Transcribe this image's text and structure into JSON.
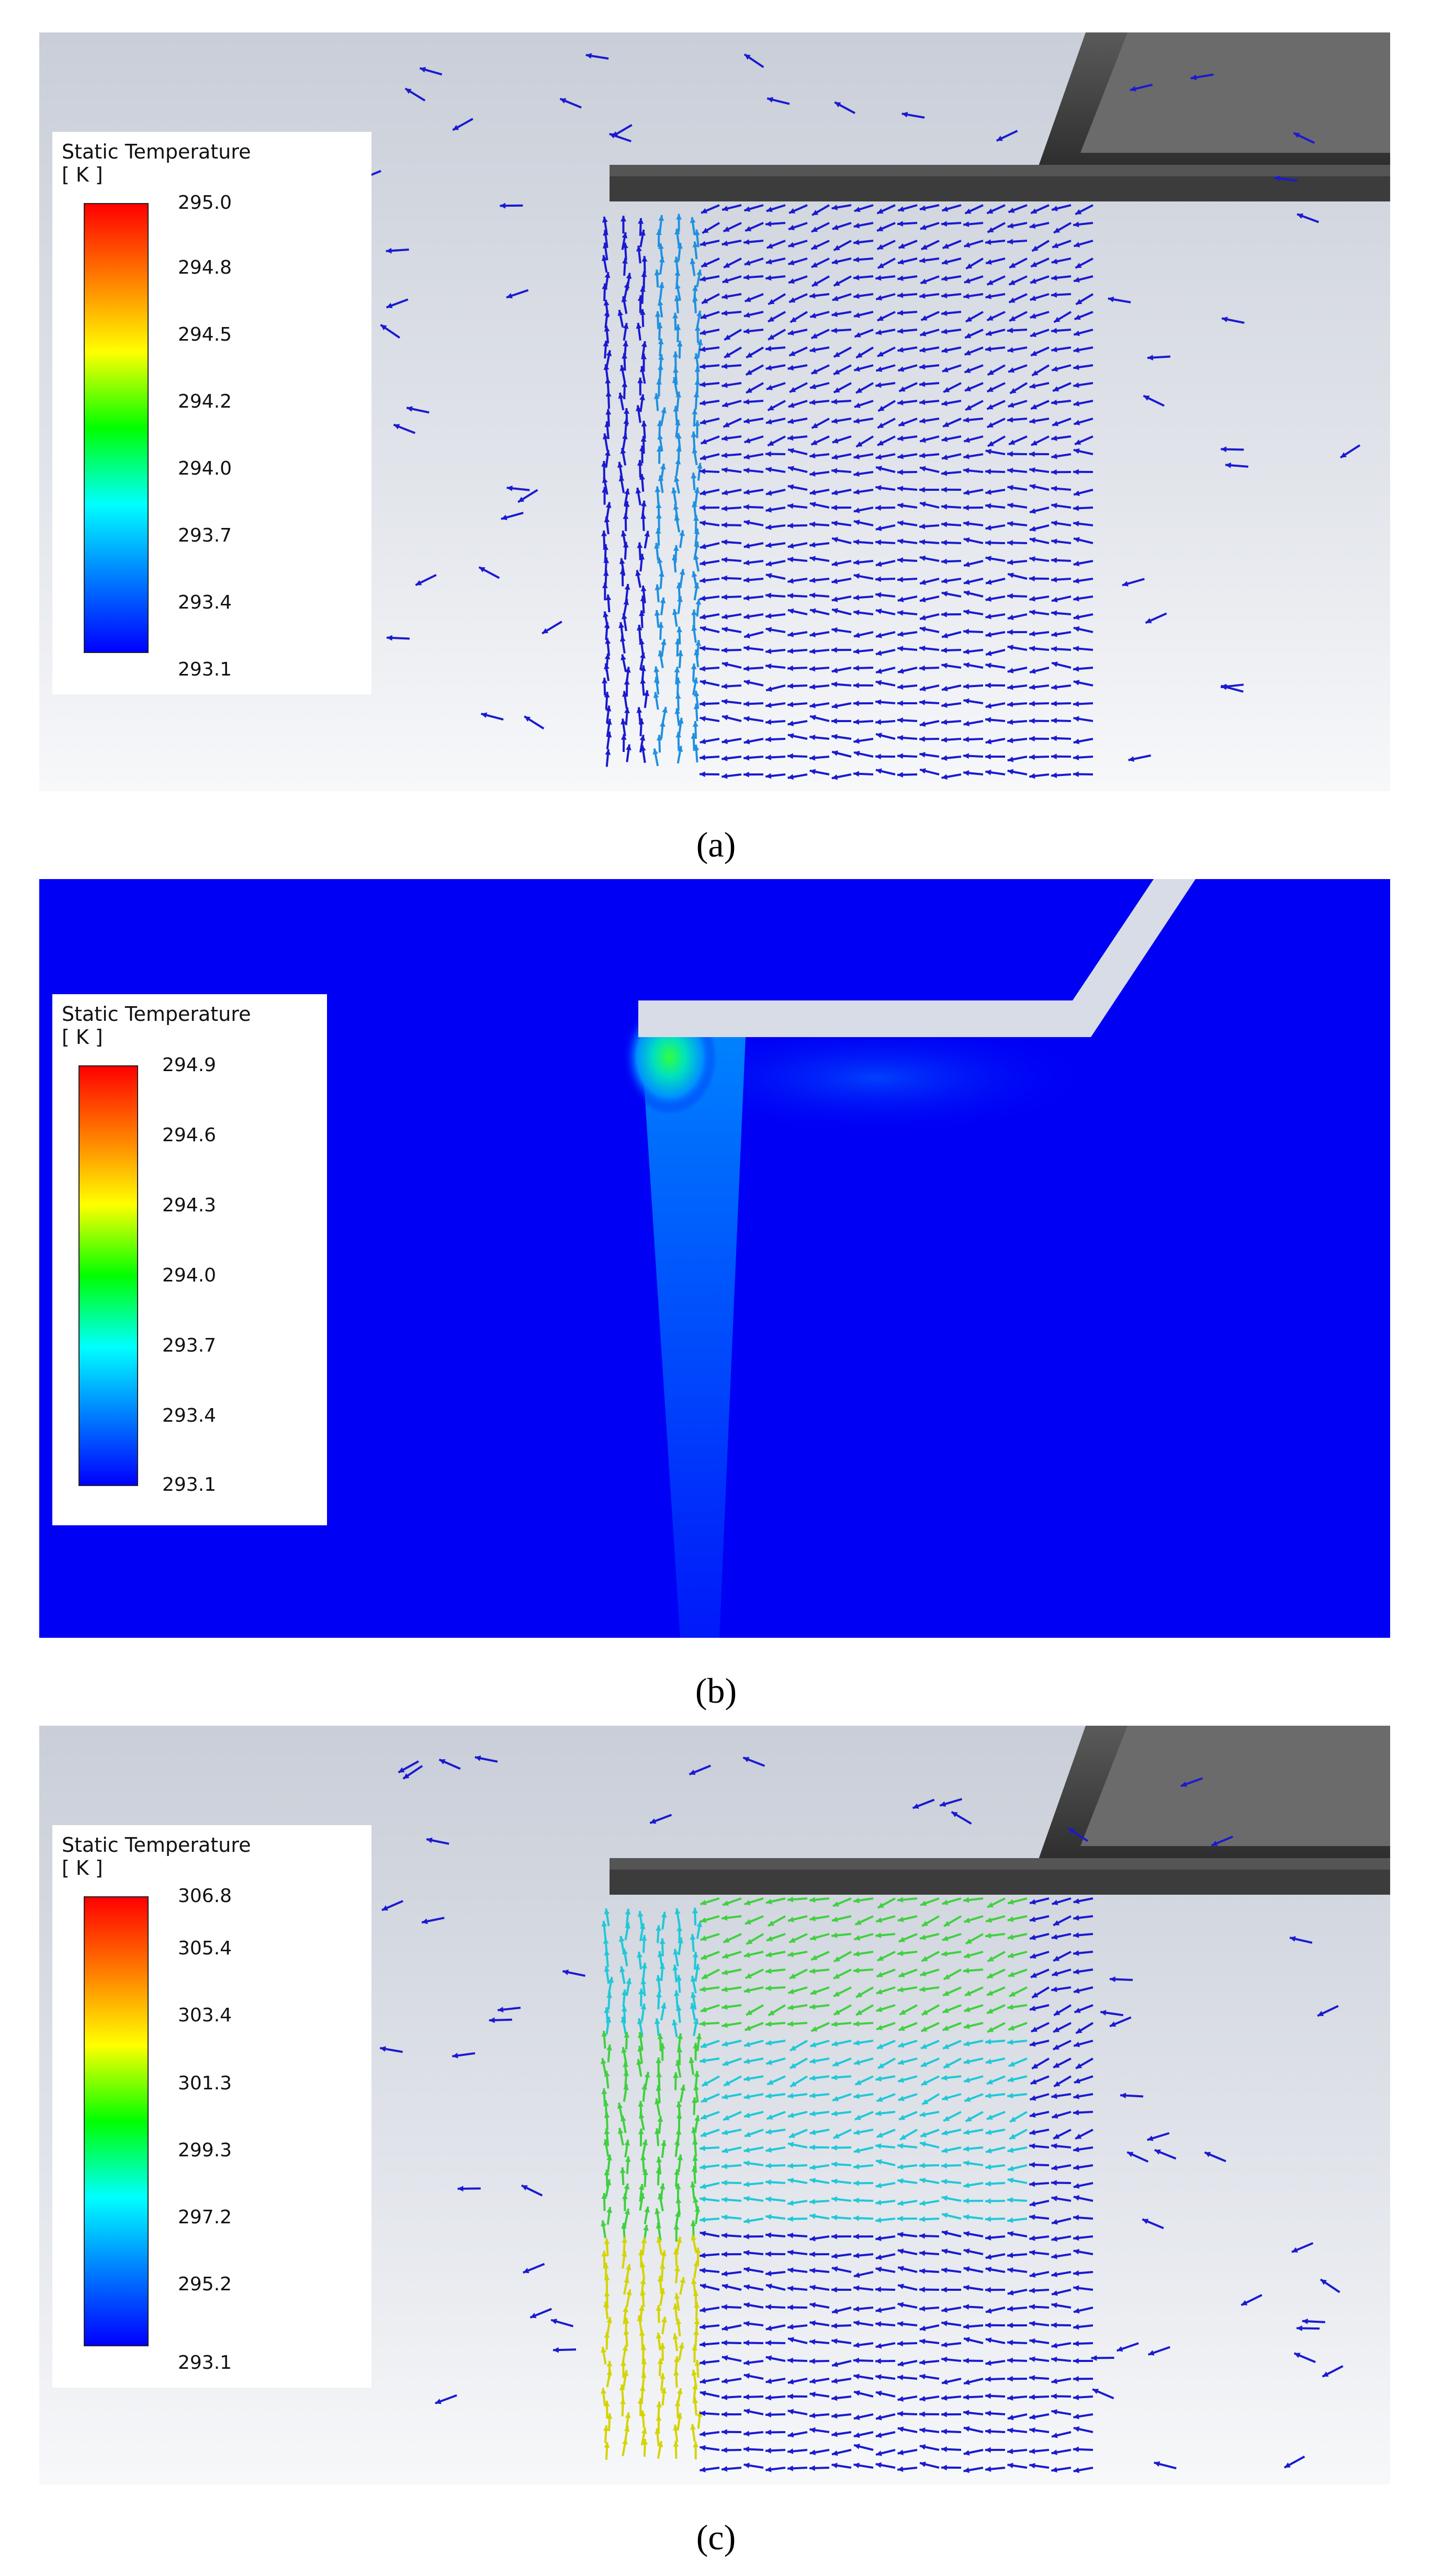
{
  "figure": {
    "panels": [
      {
        "id": "a",
        "caption": "(a)",
        "legend": {
          "title": "Static Temperature",
          "unit": "[ K ]",
          "ticks": [
            "295.0",
            "294.8",
            "294.5",
            "294.2",
            "294.0",
            "293.7",
            "293.4",
            "293.1"
          ]
        }
      },
      {
        "id": "b",
        "caption": "(b)",
        "legend": {
          "title": "Static Temperature",
          "unit": "[ K ]",
          "ticks": [
            "294.9",
            "294.6",
            "294.3",
            "294.0",
            "293.7",
            "293.4",
            "293.1"
          ]
        }
      },
      {
        "id": "c",
        "caption": "(c)",
        "legend": {
          "title": "Static Temperature",
          "unit": "[ K ]",
          "ticks": [
            "306.8",
            "305.4",
            "303.4",
            "301.3",
            "299.3",
            "297.2",
            "295.2",
            "293.1"
          ]
        }
      }
    ],
    "colors": {
      "contour_background": "#0000f5",
      "vector_cold": "#1a1ad0",
      "plate_dark": "#3a3a3a",
      "plate_light": "#d8dce6"
    }
  }
}
